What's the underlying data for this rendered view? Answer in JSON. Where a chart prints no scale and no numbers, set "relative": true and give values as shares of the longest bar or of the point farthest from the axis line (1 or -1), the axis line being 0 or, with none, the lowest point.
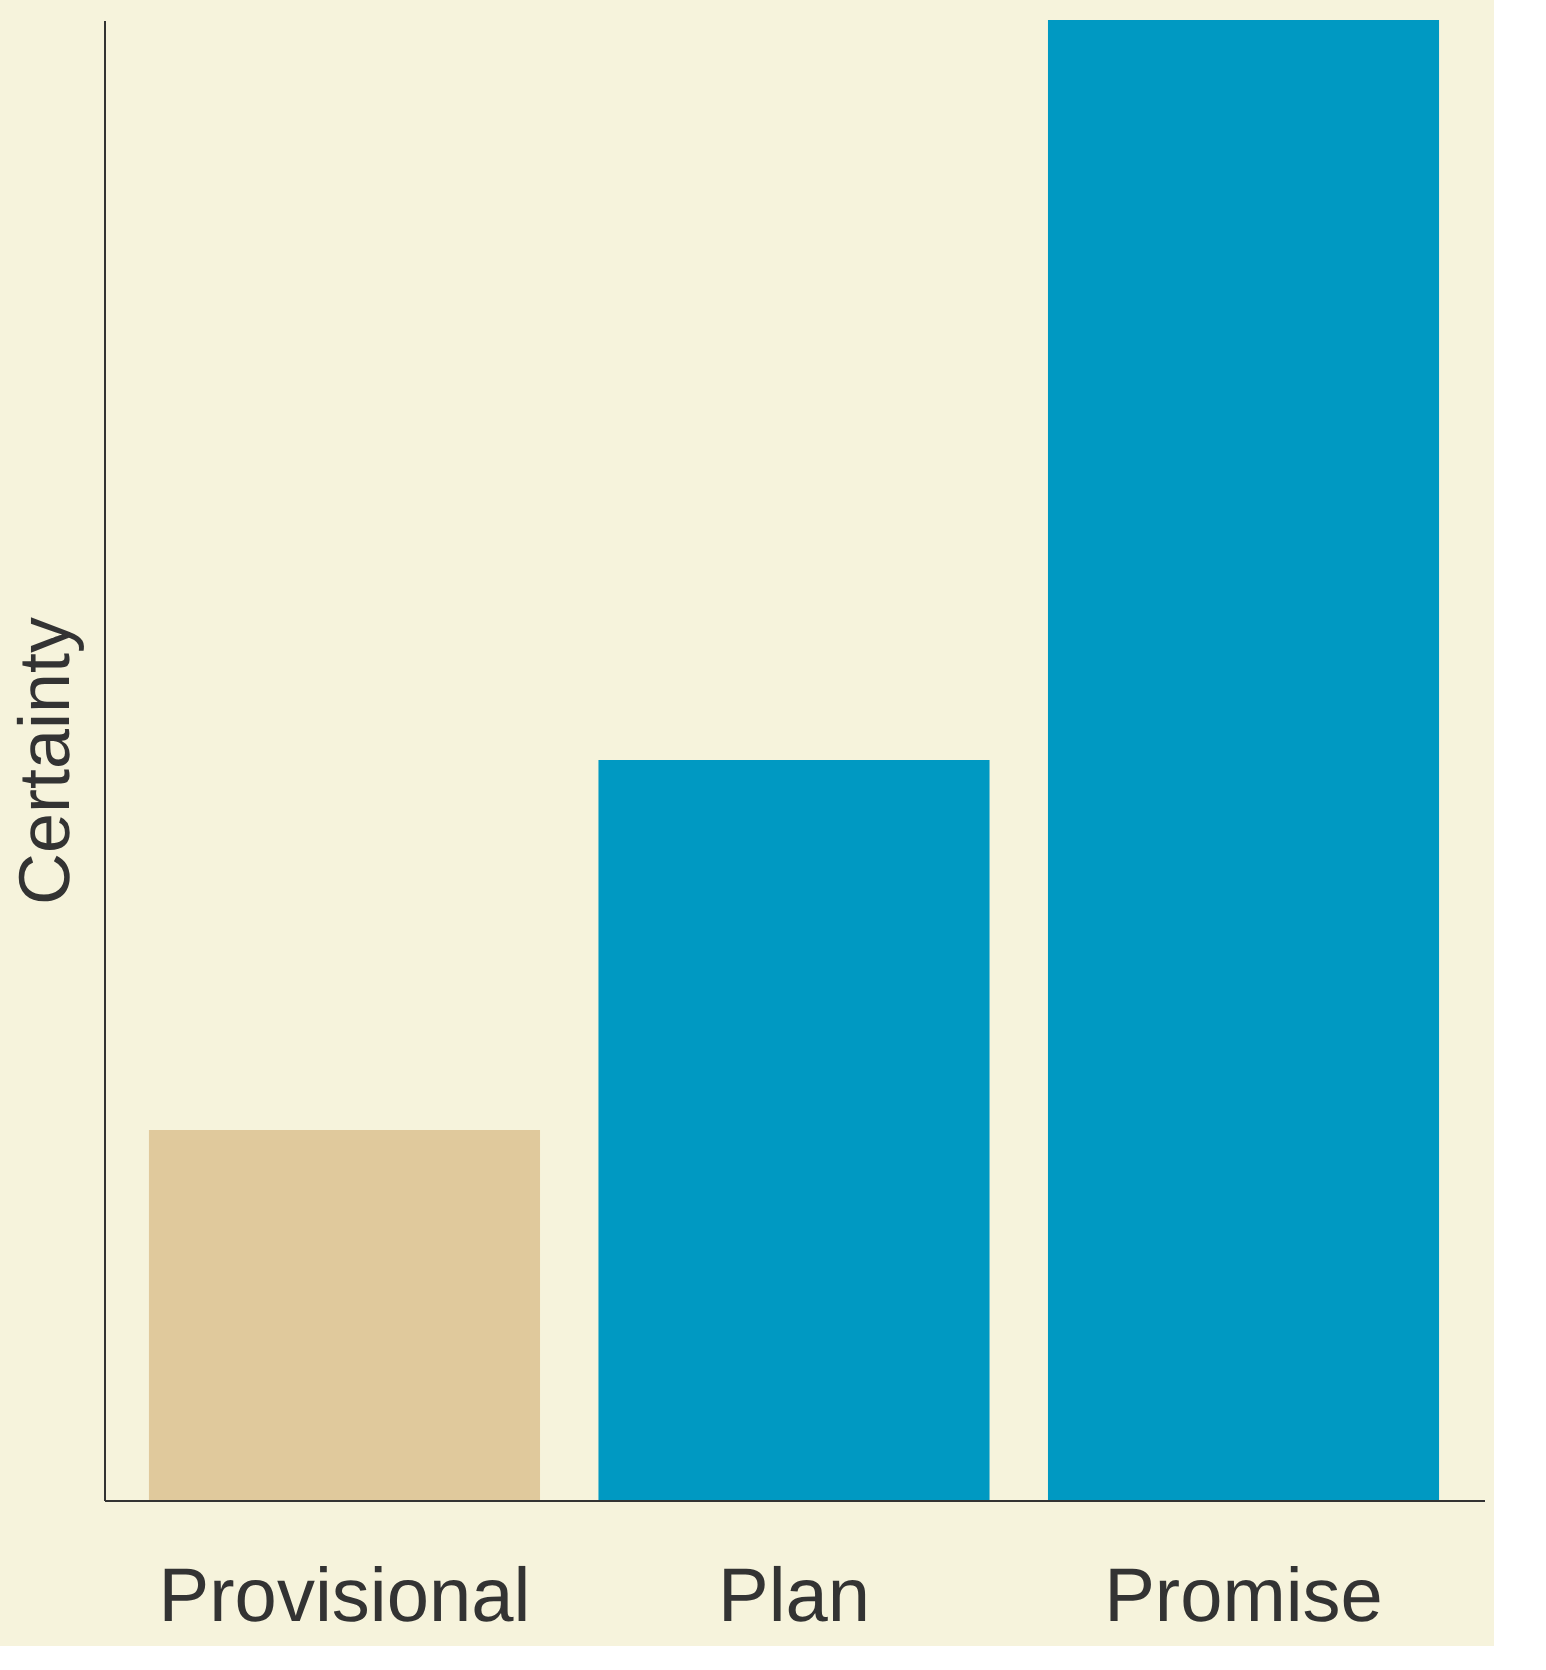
{
  "chart_data": {
    "type": "bar",
    "relative": true,
    "ylabel": "Certainty",
    "categories": [
      "Provisional",
      "Plan",
      "Promise"
    ],
    "values": [
      0.25,
      0.5,
      1
    ],
    "colors": [
      "#e0c99c",
      "#0099c2",
      "#0099c2"
    ],
    "grid": false
  }
}
